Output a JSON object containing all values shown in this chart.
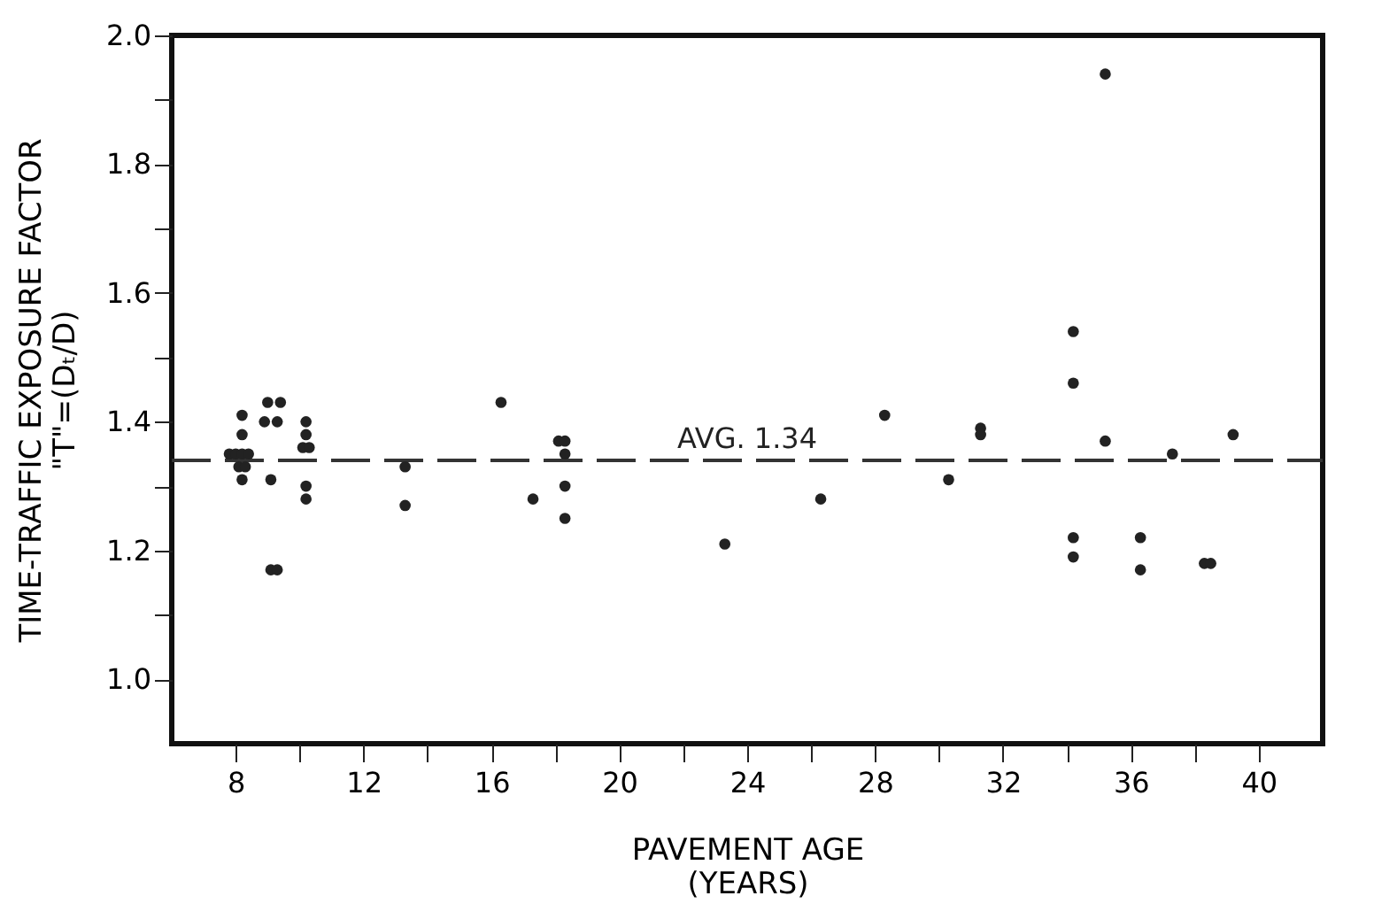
{
  "chart_data": {
    "type": "scatter",
    "xlabel": "PAVEMENT AGE\n(YEARS)",
    "ylabel": "TIME-TRAFFIC EXPOSURE FACTOR\n\"T\"=(Dₜ/D)",
    "x": [
      8.2,
      8.2,
      7.8,
      8.0,
      8.2,
      8.4,
      8.1,
      8.3,
      8.2,
      8.9,
      9.0,
      9.4,
      9.3,
      9.1,
      9.1,
      9.3,
      10.2,
      10.2,
      10.1,
      10.3,
      10.2,
      10.2,
      13.3,
      13.3,
      16.3,
      17.3,
      18.1,
      18.3,
      18.3,
      18.3,
      18.3,
      23.3,
      26.3,
      28.3,
      30.3,
      31.3,
      31.3,
      34.2,
      34.2,
      34.2,
      34.2,
      35.2,
      35.2,
      36.3,
      36.3,
      37.3,
      38.3,
      38.5,
      39.2
    ],
    "values": [
      1.41,
      1.38,
      1.35,
      1.35,
      1.35,
      1.35,
      1.33,
      1.33,
      1.31,
      1.4,
      1.43,
      1.43,
      1.4,
      1.31,
      1.17,
      1.17,
      1.4,
      1.38,
      1.36,
      1.36,
      1.3,
      1.28,
      1.33,
      1.27,
      1.43,
      1.28,
      1.37,
      1.37,
      1.35,
      1.3,
      1.25,
      1.21,
      1.28,
      1.41,
      1.31,
      1.39,
      1.38,
      1.54,
      1.46,
      1.22,
      1.19,
      1.94,
      1.37,
      1.22,
      1.17,
      1.35,
      1.18,
      1.18,
      1.38
    ],
    "color": "#222222",
    "marker": "circle",
    "xlim": [
      6,
      42
    ],
    "xticks": [
      8,
      {
        "value": 10,
        "label": null
      },
      12,
      {
        "value": 14,
        "label": null
      },
      16,
      {
        "value": 18,
        "label": null
      },
      20,
      {
        "value": 22,
        "label": null
      },
      24,
      {
        "value": 26,
        "label": null
      },
      28,
      {
        "value": 30,
        "label": null
      },
      32,
      {
        "value": 34,
        "label": null
      },
      36,
      {
        "value": 38,
        "label": null
      },
      40
    ],
    "ylim": [
      0.9,
      2.0
    ],
    "yticks": [
      {
        "value": 1.0,
        "label": "1.0"
      },
      {
        "value": 1.1,
        "label": null
      },
      1.2,
      {
        "value": 1.3,
        "label": null
      },
      1.4,
      {
        "value": 1.5,
        "label": null
      },
      1.6,
      {
        "value": 1.7,
        "label": null
      },
      1.8,
      {
        "value": 1.9,
        "label": null
      },
      {
        "value": 2.0,
        "label": "2.0"
      }
    ],
    "ref_lines": [
      {
        "axis": "y",
        "value": 1.34,
        "label": "AVG. 1.34",
        "color": "#333333",
        "line_style": "dashed"
      }
    ],
    "grid": false
  }
}
